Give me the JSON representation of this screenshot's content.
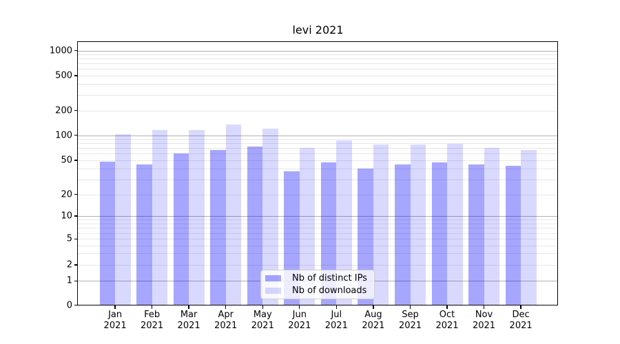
{
  "title": "levi 2021",
  "chart_data": {
    "type": "bar",
    "title": "levi 2021",
    "categories": [
      "Jan",
      "Feb",
      "Mar",
      "Apr",
      "May",
      "Jun",
      "Jul",
      "Aug",
      "Sep",
      "Oct",
      "Nov",
      "Dec"
    ],
    "category_year": "2021",
    "series": [
      {
        "name": "Nb of distinct IPs",
        "color": "rgba(0,0,255,0.35)",
        "values": [
          48,
          45,
          61,
          67,
          73,
          37,
          47,
          40,
          45,
          47,
          45,
          43
        ]
      },
      {
        "name": "Nb of downloads",
        "color": "rgba(0,0,255,0.15)",
        "values": [
          103,
          116,
          115,
          134,
          120,
          70,
          87,
          77,
          78,
          79,
          71,
          66
        ]
      }
    ],
    "xlabel": "",
    "ylabel": "",
    "y_axis": {
      "scale": "symlog",
      "ticks": [
        0,
        1,
        2,
        5,
        10,
        20,
        50,
        100,
        200,
        500,
        1000
      ],
      "ylim": [
        0,
        1300
      ]
    },
    "grid": "both",
    "legend_position": "lower center",
    "colors": {
      "major_grid": "#b0b0b0",
      "minor_grid": "#e7e7e7",
      "axis": "#000000",
      "background": "#ffffff"
    }
  }
}
